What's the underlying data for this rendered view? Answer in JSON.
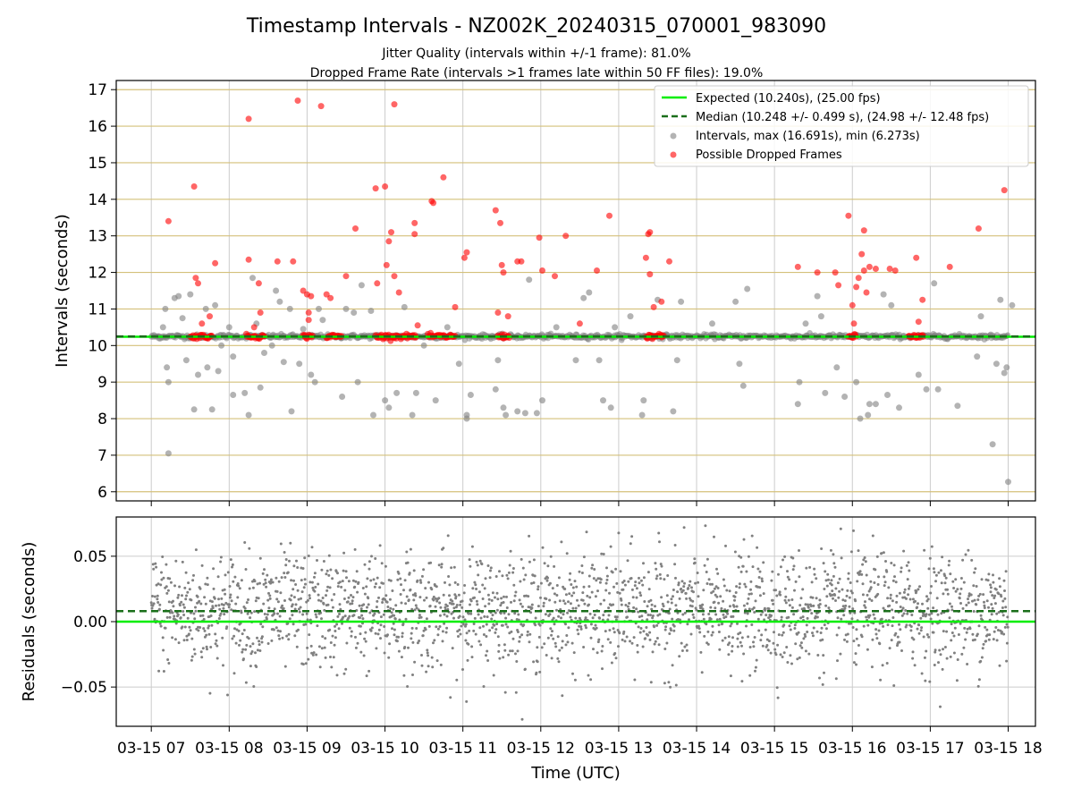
{
  "title": "Timestamp Intervals - NZ002K_20240315_070001_983090",
  "subtitle1": "Jitter Quality (intervals within +/-1 frame): 81.0%",
  "subtitle2": "Dropped Frame Rate (intervals >1 frames late within 50 FF files): 19.0%",
  "colors": {
    "expected": "#00ee00",
    "median": "#1a6f1a",
    "intervals": "#808080",
    "dropped": "#ff0000",
    "hgrid": "#d4c07a",
    "vgrid": "#cccccc"
  },
  "chart_data": [
    {
      "type": "scatter",
      "ylabel": "Intervals (seconds)",
      "ylim": [
        5.75,
        17.25
      ],
      "yticks": [
        6,
        7,
        8,
        9,
        10,
        11,
        12,
        13,
        14,
        15,
        16,
        17
      ],
      "x_range_hours": [
        6.55,
        18.35
      ],
      "expected_line": 10.24,
      "median_line": 10.248,
      "legend": [
        "Expected (10.240s), (25.00 fps)",
        "Median (10.248 +/- 0.499 s), (24.98 +/- 12.48 fps)",
        "Intervals, max (16.691s), min (6.273s)",
        "Possible Dropped Frames"
      ],
      "legend_position": "top-right",
      "dropped_frames": [
        [
          7.22,
          13.4
        ],
        [
          7.55,
          14.35
        ],
        [
          7.57,
          11.85
        ],
        [
          7.6,
          11.7
        ],
        [
          7.65,
          10.6
        ],
        [
          7.75,
          10.8
        ],
        [
          7.82,
          12.25
        ],
        [
          8.25,
          12.35
        ],
        [
          8.25,
          16.2
        ],
        [
          8.32,
          10.5
        ],
        [
          8.4,
          10.9
        ],
        [
          8.38,
          11.7
        ],
        [
          8.62,
          12.3
        ],
        [
          8.82,
          12.3
        ],
        [
          8.88,
          16.7
        ],
        [
          8.95,
          11.5
        ],
        [
          9.0,
          11.4
        ],
        [
          9.02,
          10.9
        ],
        [
          9.02,
          10.7
        ],
        [
          9.05,
          11.35
        ],
        [
          9.18,
          16.55
        ],
        [
          9.25,
          11.4
        ],
        [
          9.3,
          11.3
        ],
        [
          9.5,
          11.9
        ],
        [
          9.62,
          13.2
        ],
        [
          9.88,
          14.3
        ],
        [
          9.9,
          11.7
        ],
        [
          10.0,
          14.35
        ],
        [
          10.02,
          12.2
        ],
        [
          10.05,
          12.85
        ],
        [
          10.08,
          13.1
        ],
        [
          10.12,
          11.9
        ],
        [
          10.12,
          16.6
        ],
        [
          10.18,
          11.45
        ],
        [
          10.38,
          13.35
        ],
        [
          10.38,
          13.05
        ],
        [
          10.42,
          10.55
        ],
        [
          10.6,
          13.95
        ],
        [
          10.62,
          13.9
        ],
        [
          10.75,
          14.6
        ],
        [
          10.9,
          11.05
        ],
        [
          11.02,
          12.4
        ],
        [
          11.05,
          12.55
        ],
        [
          11.42,
          13.7
        ],
        [
          11.45,
          10.9
        ],
        [
          11.48,
          13.35
        ],
        [
          11.5,
          12.2
        ],
        [
          11.52,
          12.0
        ],
        [
          11.58,
          10.8
        ],
        [
          11.7,
          12.3
        ],
        [
          11.75,
          12.3
        ],
        [
          11.98,
          12.95
        ],
        [
          12.02,
          12.05
        ],
        [
          12.18,
          11.9
        ],
        [
          12.32,
          13.0
        ],
        [
          12.5,
          10.6
        ],
        [
          12.72,
          12.05
        ],
        [
          12.88,
          13.55
        ],
        [
          13.35,
          12.4
        ],
        [
          13.38,
          13.05
        ],
        [
          13.4,
          13.1
        ],
        [
          13.4,
          11.95
        ],
        [
          13.45,
          11.05
        ],
        [
          13.55,
          11.2
        ],
        [
          13.65,
          12.3
        ],
        [
          15.3,
          12.15
        ],
        [
          15.55,
          12.0
        ],
        [
          15.78,
          12.0
        ],
        [
          15.82,
          11.65
        ],
        [
          15.95,
          13.55
        ],
        [
          16.0,
          11.1
        ],
        [
          16.02,
          10.6
        ],
        [
          16.05,
          11.6
        ],
        [
          16.08,
          11.85
        ],
        [
          16.12,
          12.5
        ],
        [
          16.15,
          13.15
        ],
        [
          16.15,
          12.05
        ],
        [
          16.18,
          11.45
        ],
        [
          16.22,
          12.15
        ],
        [
          16.3,
          12.1
        ],
        [
          16.48,
          12.1
        ],
        [
          16.55,
          12.05
        ],
        [
          16.82,
          12.4
        ],
        [
          16.85,
          10.65
        ],
        [
          16.9,
          11.25
        ],
        [
          17.25,
          12.15
        ],
        [
          17.62,
          13.2
        ],
        [
          17.95,
          14.25
        ]
      ],
      "dropped_clusters_hours": [
        [
          7.5,
          7.78
        ],
        [
          8.22,
          8.45
        ],
        [
          8.95,
          9.08
        ],
        [
          9.25,
          9.45
        ],
        [
          9.88,
          10.4
        ],
        [
          10.55,
          10.9
        ],
        [
          11.45,
          11.6
        ],
        [
          13.35,
          13.58
        ],
        [
          15.95,
          16.05
        ],
        [
          16.72,
          16.92
        ]
      ],
      "intervals_outliers": [
        [
          7.1,
          10.2
        ],
        [
          7.15,
          10.5
        ],
        [
          7.18,
          11.0
        ],
        [
          7.2,
          9.4
        ],
        [
          7.22,
          9.0
        ],
        [
          7.22,
          7.05
        ],
        [
          7.3,
          11.3
        ],
        [
          7.35,
          11.35
        ],
        [
          7.4,
          10.75
        ],
        [
          7.45,
          9.6
        ],
        [
          7.5,
          11.4
        ],
        [
          7.55,
          8.25
        ],
        [
          7.6,
          9.2
        ],
        [
          7.7,
          11.0
        ],
        [
          7.72,
          9.4
        ],
        [
          7.78,
          8.25
        ],
        [
          7.82,
          11.1
        ],
        [
          7.86,
          9.3
        ],
        [
          7.9,
          10.0
        ],
        [
          8.0,
          10.5
        ],
        [
          8.05,
          9.7
        ],
        [
          8.05,
          8.65
        ],
        [
          8.2,
          8.7
        ],
        [
          8.25,
          8.1
        ],
        [
          8.3,
          11.85
        ],
        [
          8.35,
          10.6
        ],
        [
          8.4,
          8.85
        ],
        [
          8.45,
          9.8
        ],
        [
          8.55,
          10.0
        ],
        [
          8.6,
          11.5
        ],
        [
          8.65,
          11.2
        ],
        [
          8.7,
          9.55
        ],
        [
          8.78,
          11.0
        ],
        [
          8.8,
          8.2
        ],
        [
          8.9,
          9.5
        ],
        [
          8.95,
          10.45
        ],
        [
          9.05,
          9.2
        ],
        [
          9.1,
          9.0
        ],
        [
          9.15,
          11.0
        ],
        [
          9.2,
          10.7
        ],
        [
          9.45,
          8.6
        ],
        [
          9.5,
          11.0
        ],
        [
          9.6,
          10.9
        ],
        [
          9.65,
          9.0
        ],
        [
          9.7,
          11.65
        ],
        [
          9.82,
          10.95
        ],
        [
          9.85,
          8.1
        ],
        [
          10.0,
          8.5
        ],
        [
          10.05,
          8.3
        ],
        [
          10.15,
          8.7
        ],
        [
          10.25,
          11.05
        ],
        [
          10.35,
          8.1
        ],
        [
          10.4,
          8.7
        ],
        [
          10.5,
          10.0
        ],
        [
          10.65,
          8.5
        ],
        [
          10.8,
          10.5
        ],
        [
          10.95,
          9.5
        ],
        [
          11.05,
          8.1
        ],
        [
          11.05,
          8.0
        ],
        [
          11.1,
          8.65
        ],
        [
          11.42,
          8.8
        ],
        [
          11.45,
          9.6
        ],
        [
          11.52,
          8.3
        ],
        [
          11.55,
          8.1
        ],
        [
          11.7,
          8.2
        ],
        [
          11.8,
          8.15
        ],
        [
          11.85,
          11.8
        ],
        [
          11.95,
          8.15
        ],
        [
          12.02,
          8.5
        ],
        [
          12.2,
          10.5
        ],
        [
          12.45,
          9.6
        ],
        [
          12.55,
          11.3
        ],
        [
          12.62,
          11.45
        ],
        [
          12.75,
          9.6
        ],
        [
          12.8,
          8.5
        ],
        [
          12.9,
          8.3
        ],
        [
          12.95,
          10.5
        ],
        [
          13.15,
          10.8
        ],
        [
          13.3,
          8.1
        ],
        [
          13.32,
          8.5
        ],
        [
          13.5,
          11.25
        ],
        [
          13.7,
          8.2
        ],
        [
          13.75,
          9.6
        ],
        [
          13.8,
          11.2
        ],
        [
          14.2,
          10.6
        ],
        [
          14.5,
          11.2
        ],
        [
          14.55,
          9.5
        ],
        [
          14.6,
          8.9
        ],
        [
          14.65,
          11.55
        ],
        [
          15.3,
          8.4
        ],
        [
          15.32,
          9.0
        ],
        [
          15.4,
          10.6
        ],
        [
          15.55,
          11.35
        ],
        [
          15.6,
          10.8
        ],
        [
          15.65,
          8.7
        ],
        [
          15.8,
          9.4
        ],
        [
          15.9,
          8.6
        ],
        [
          16.05,
          9.0
        ],
        [
          16.1,
          8.0
        ],
        [
          16.2,
          8.1
        ],
        [
          16.22,
          8.4
        ],
        [
          16.3,
          8.4
        ],
        [
          16.4,
          11.4
        ],
        [
          16.45,
          8.65
        ],
        [
          16.5,
          11.1
        ],
        [
          16.6,
          8.3
        ],
        [
          16.85,
          9.2
        ],
        [
          16.95,
          8.8
        ],
        [
          17.05,
          11.7
        ],
        [
          17.1,
          8.8
        ],
        [
          17.35,
          8.35
        ],
        [
          17.6,
          9.7
        ],
        [
          17.65,
          10.8
        ],
        [
          17.8,
          7.3
        ],
        [
          17.85,
          9.5
        ],
        [
          17.9,
          11.25
        ],
        [
          17.95,
          9.25
        ],
        [
          17.98,
          9.4
        ],
        [
          18.0,
          6.27
        ],
        [
          18.05,
          11.1
        ]
      ]
    },
    {
      "type": "scatter",
      "xlabel": "Time (UTC)",
      "ylabel": "Residuals (seconds)",
      "ylim": [
        -0.08,
        0.08
      ],
      "yticks": [
        0.05,
        0.0,
        -0.05
      ],
      "ytick_labels": [
        "0.05",
        "0.00",
        "−0.05"
      ],
      "zero_line": 0.0,
      "median_offset": 0.008,
      "spread_sd": 0.022,
      "x_range_hours": [
        7.0,
        18.0
      ],
      "xticks_hours": [
        7,
        8,
        9,
        10,
        11,
        12,
        13,
        14,
        15,
        16,
        17,
        18
      ],
      "xtick_labels": [
        "03-15 07",
        "03-15 08",
        "03-15 09",
        "03-15 10",
        "03-15 11",
        "03-15 12",
        "03-15 13",
        "03-15 14",
        "03-15 15",
        "03-15 16",
        "03-15 17",
        "03-15 18"
      ]
    }
  ]
}
